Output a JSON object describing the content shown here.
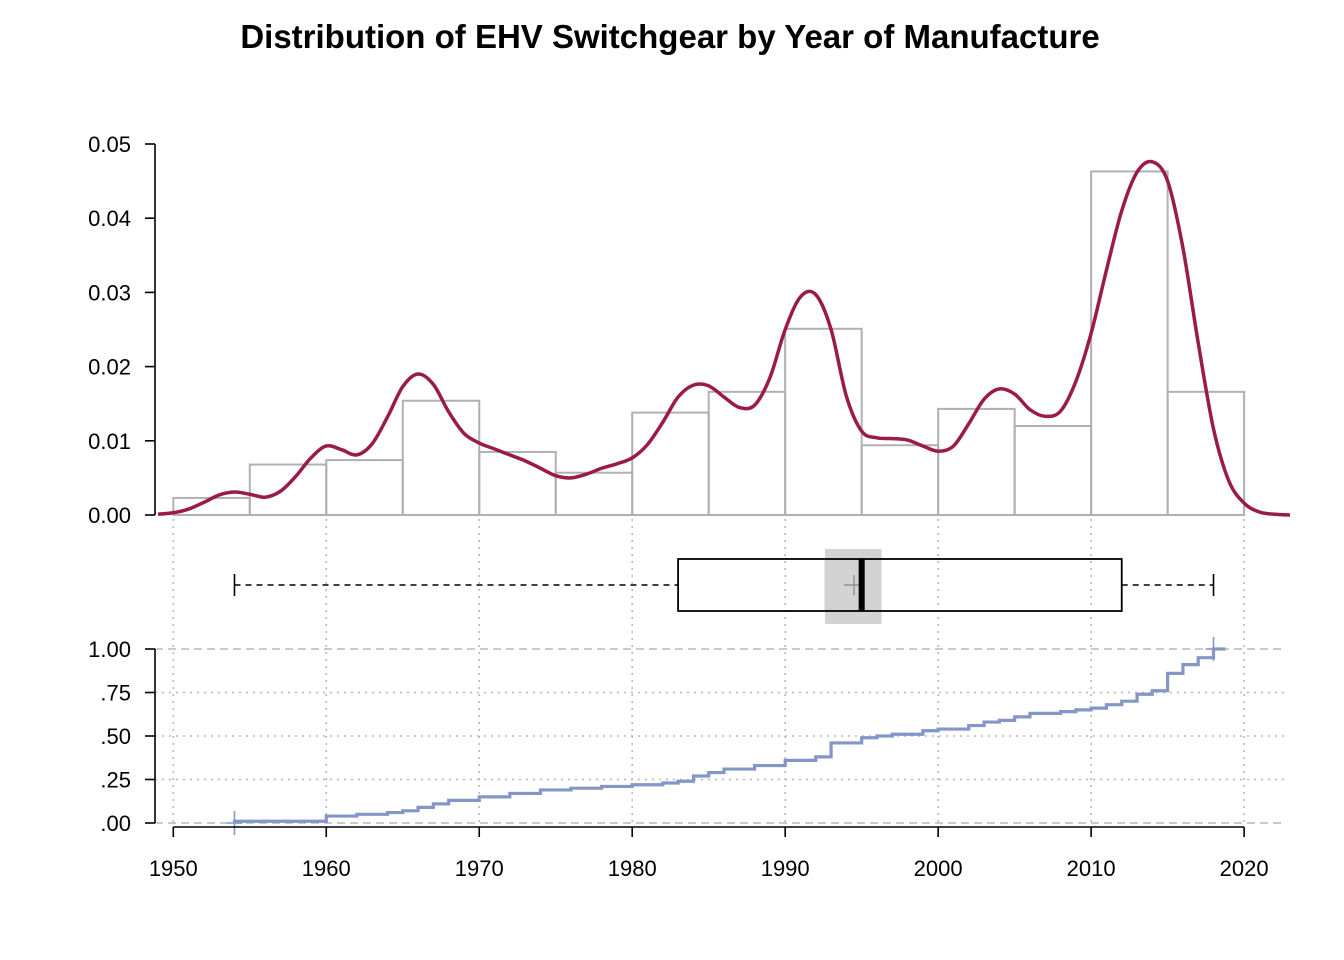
{
  "chart_data": {
    "type": "histogram-density-box-ecdf",
    "title": "Distribution of EHV Switchgear by Year of Manufacture",
    "colors": {
      "density": "#9a1a4a",
      "histogram_border": "#b0b0b0",
      "ecdf": "#8496c8",
      "box_border": "#000000",
      "ci_band": "#d3d3d3",
      "grid": "#b8b8b8"
    },
    "histogram": {
      "bin_edges": [
        1950,
        1955,
        1960,
        1965,
        1970,
        1975,
        1980,
        1985,
        1990,
        1995,
        2000,
        2005,
        2010,
        2015,
        2020
      ],
      "density": [
        0.0023,
        0.0068,
        0.0074,
        0.0154,
        0.0085,
        0.0057,
        0.0138,
        0.0166,
        0.0251,
        0.0094,
        0.0143,
        0.012,
        0.0463,
        0.0166
      ]
    },
    "density_curve": {
      "x": [
        1949,
        1950,
        1951,
        1952,
        1953,
        1954,
        1955,
        1956,
        1957,
        1958,
        1959,
        1960,
        1961,
        1962,
        1963,
        1964,
        1965,
        1966,
        1967,
        1968,
        1969,
        1970,
        1971,
        1972,
        1973,
        1974,
        1975,
        1976,
        1977,
        1978,
        1979,
        1980,
        1981,
        1982,
        1983,
        1984,
        1985,
        1986,
        1987,
        1988,
        1989,
        1990,
        1991,
        1992,
        1993,
        1994,
        1995,
        1996,
        1997,
        1998,
        1999,
        2000,
        2001,
        2002,
        2003,
        2004,
        2005,
        2006,
        2007,
        2008,
        2009,
        2010,
        2011,
        2012,
        2013,
        2014,
        2015,
        2016,
        2017,
        2018,
        2019,
        2020,
        2021,
        2022,
        2023
      ],
      "y": [
        0.0001,
        0.0003,
        0.0008,
        0.0017,
        0.0027,
        0.0031,
        0.0028,
        0.0024,
        0.0032,
        0.0052,
        0.0077,
        0.0093,
        0.0088,
        0.0081,
        0.0096,
        0.0132,
        0.0173,
        0.019,
        0.0176,
        0.0139,
        0.011,
        0.0097,
        0.0089,
        0.0081,
        0.0073,
        0.0063,
        0.0053,
        0.005,
        0.0055,
        0.0063,
        0.0069,
        0.0077,
        0.0095,
        0.0125,
        0.0159,
        0.0175,
        0.0174,
        0.0159,
        0.0145,
        0.0148,
        0.0185,
        0.025,
        0.0294,
        0.0297,
        0.025,
        0.016,
        0.0113,
        0.0104,
        0.0103,
        0.0101,
        0.0093,
        0.0086,
        0.0093,
        0.0123,
        0.0156,
        0.017,
        0.0163,
        0.0142,
        0.0133,
        0.014,
        0.018,
        0.0245,
        0.033,
        0.041,
        0.0462,
        0.0476,
        0.045,
        0.036,
        0.0232,
        0.0116,
        0.0046,
        0.0016,
        0.0004,
        0.0001,
        0.0
      ]
    },
    "boxplot": {
      "whisker_low": 1954,
      "q1": 1983,
      "median": 1995,
      "q3": 2012,
      "whisker_high": 2018,
      "mean": 1994.5,
      "median_ci": [
        1992.6,
        1996.3
      ]
    },
    "ecdf": {
      "x": [
        1954,
        1960,
        1962,
        1964,
        1965,
        1966,
        1967,
        1968,
        1970,
        1972,
        1974,
        1976,
        1978,
        1980,
        1982,
        1983,
        1984,
        1985,
        1986,
        1988,
        1990,
        1992,
        1993,
        1995,
        1996,
        1997,
        1999,
        2000,
        2002,
        2003,
        2004,
        2005,
        2006,
        2008,
        2009,
        2010,
        2011,
        2012,
        2013,
        2014,
        2015,
        2016,
        2017,
        2018
      ],
      "y": [
        0.01,
        0.04,
        0.05,
        0.06,
        0.07,
        0.09,
        0.11,
        0.13,
        0.15,
        0.17,
        0.19,
        0.2,
        0.21,
        0.22,
        0.23,
        0.24,
        0.27,
        0.29,
        0.31,
        0.33,
        0.36,
        0.38,
        0.46,
        0.49,
        0.5,
        0.51,
        0.53,
        0.54,
        0.56,
        0.58,
        0.59,
        0.61,
        0.63,
        0.64,
        0.65,
        0.66,
        0.68,
        0.7,
        0.74,
        0.76,
        0.86,
        0.91,
        0.95,
        1.0
      ]
    },
    "x_axis": {
      "ticks": [
        1950,
        1960,
        1970,
        1980,
        1990,
        2000,
        2010,
        2020
      ],
      "range": [
        1949,
        2023
      ]
    },
    "density_axis": {
      "ticks": [
        0.0,
        0.01,
        0.02,
        0.03,
        0.04,
        0.05
      ],
      "labels": [
        "0.00",
        "0.01",
        "0.02",
        "0.03",
        "0.04",
        "0.05"
      ],
      "range": [
        0,
        0.05
      ]
    },
    "ecdf_axis": {
      "ticks": [
        0,
        0.25,
        0.5,
        0.75,
        1
      ],
      "labels": [
        ".00",
        ".25",
        ".50",
        ".75",
        "1.00"
      ],
      "range": [
        0,
        1
      ]
    },
    "grid": true
  }
}
